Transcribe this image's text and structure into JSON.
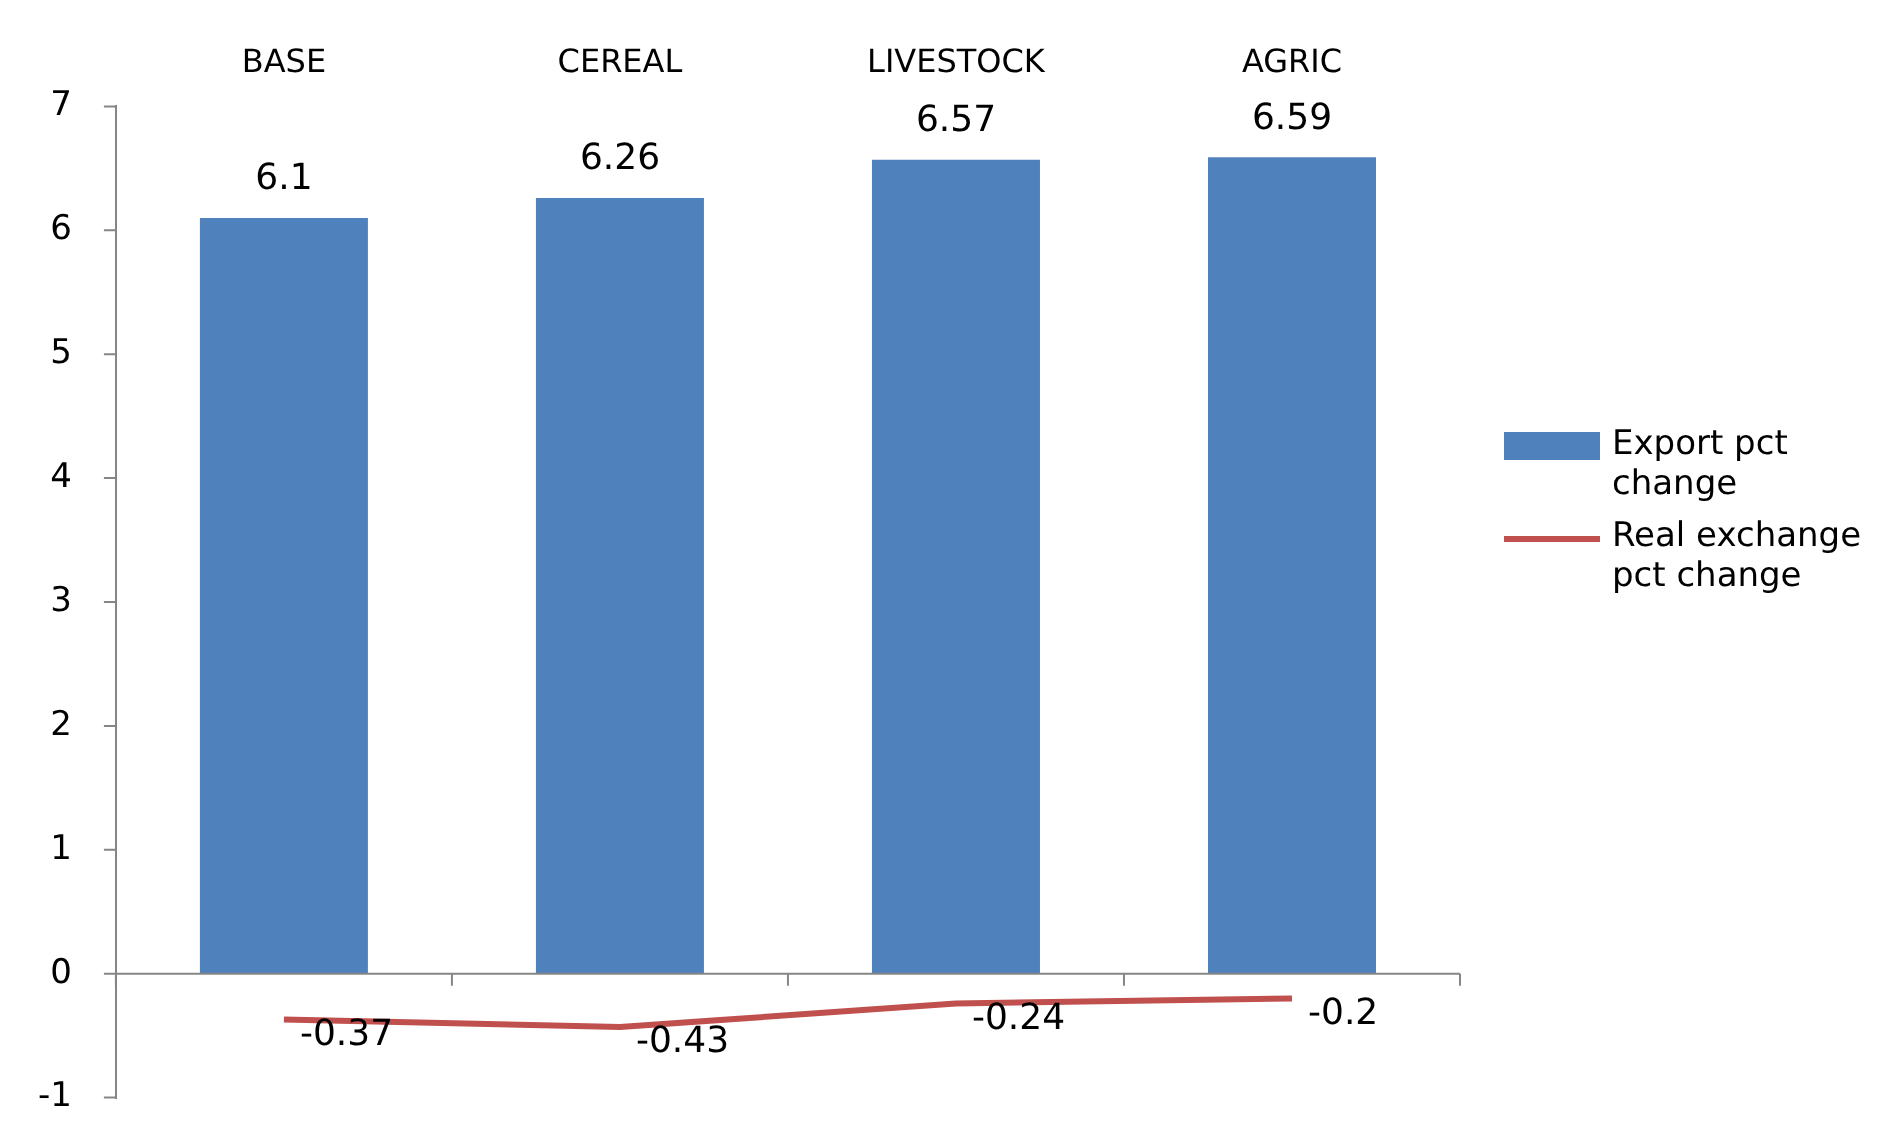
{
  "chart_data": {
    "type": "bar",
    "categories": [
      "BASE",
      "CEREAL",
      "LIVESTOCK",
      "AGRIC"
    ],
    "series": [
      {
        "name": "Export pct change",
        "color": "#4f81bd",
        "values": [
          6.1,
          6.26,
          6.57,
          6.59
        ]
      },
      {
        "name": "Real exchange pct change",
        "type": "line",
        "color": "#c0504d",
        "values": [
          -0.37,
          -0.43,
          -0.24,
          -0.2
        ]
      }
    ],
    "ylim": [
      -1,
      7
    ],
    "yticks": [
      -1,
      0,
      1,
      2,
      3,
      4,
      5,
      6,
      7
    ],
    "grid": false,
    "ref_lines": [
      {
        "axis": "y",
        "value": 0,
        "color": "#868686"
      }
    ],
    "legend": "right",
    "data_labels": true,
    "marker": "none"
  }
}
